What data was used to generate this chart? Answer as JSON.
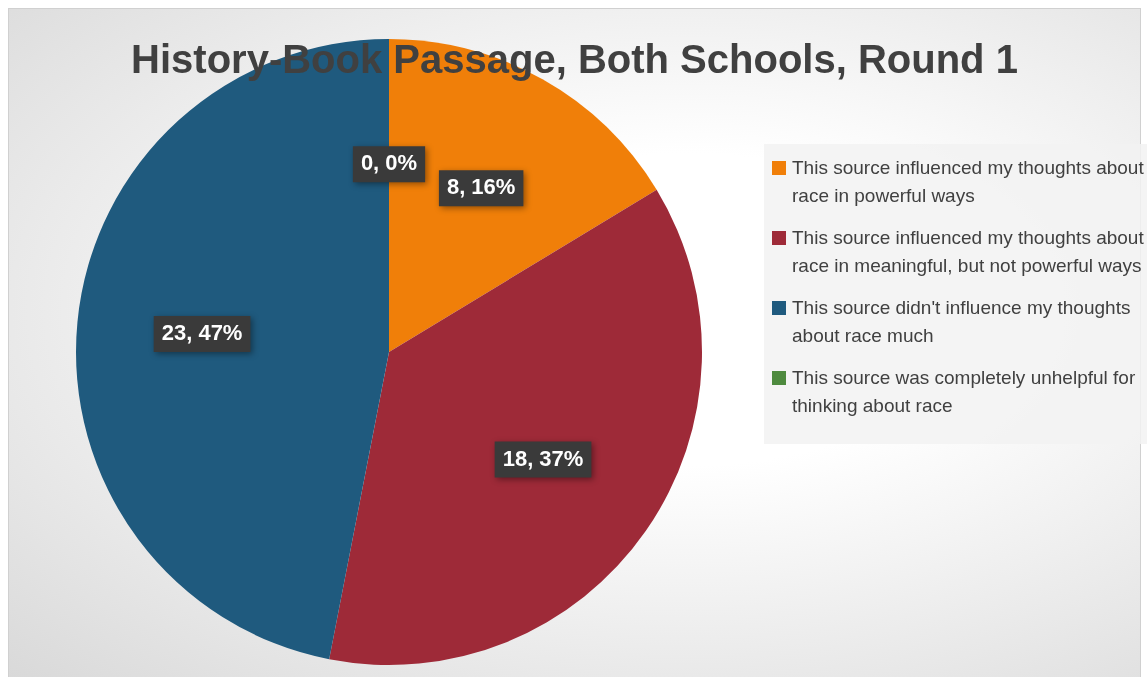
{
  "chart_data": {
    "type": "pie",
    "title": "History-Book Passage, Both Schools, Round 1",
    "categories": [
      "This source influenced my thoughts about race in powerful ways",
      "This source influenced my thoughts about race in meaningful, but not powerful ways",
      "This source didn't influence my thoughts about race much",
      "This source was completely unhelpful for thinking about race"
    ],
    "values": [
      8,
      18,
      23,
      0
    ],
    "colors": [
      "#f07f09",
      "#9e2a38",
      "#1f5a7e",
      "#4e8a3e"
    ],
    "value_labels": [
      "8, 16%",
      "18, 37%",
      "23, 47%",
      "0, 0%"
    ],
    "legend": "right"
  }
}
